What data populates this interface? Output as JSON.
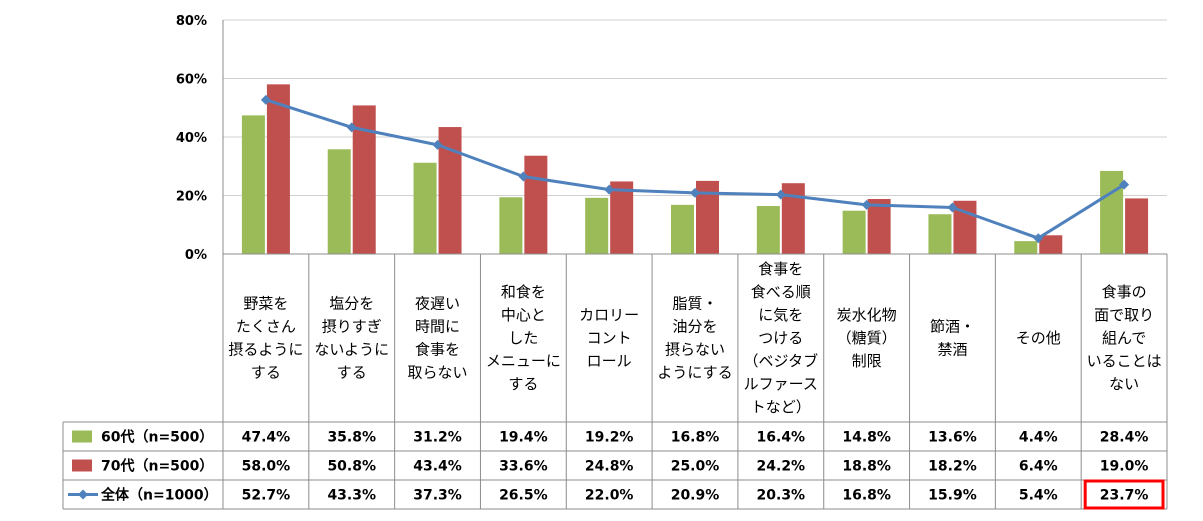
{
  "chart_data": {
    "type": "bar",
    "title": "",
    "xlabel": "",
    "ylabel": "",
    "ylim": [
      0,
      80
    ],
    "yticks": [
      "0%",
      "20%",
      "40%",
      "60%",
      "80%"
    ],
    "yticks_values": [
      0,
      20,
      40,
      60,
      80
    ],
    "grid": true,
    "categories": [
      [
        "野菜を",
        "たくさん",
        "摂るように",
        "する"
      ],
      [
        "塩分を",
        "摂りすぎ",
        "ないように",
        "する"
      ],
      [
        "夜遅い",
        "時間に",
        "食事を",
        "取らない"
      ],
      [
        "和食を",
        "中心と",
        "した",
        "メニューに",
        "する"
      ],
      [
        "カロリー",
        "コント",
        "ロール"
      ],
      [
        "脂質・",
        "油分を",
        "摂らない",
        "ようにする"
      ],
      [
        "食事を",
        "食べる順",
        "に気を",
        "つける",
        "（ベジタブ",
        "ルファース",
        "トなど）"
      ],
      [
        "炭水化物",
        "（糖質）",
        "制限"
      ],
      [
        "節酒・",
        "禁酒"
      ],
      [
        "その他"
      ],
      [
        "食事の",
        "面で取り",
        "組んで",
        "いることは",
        "ない"
      ]
    ],
    "series": [
      {
        "name": "60代（n=500）",
        "kind": "bar",
        "color": "#9BBB59",
        "values": [
          47.4,
          35.8,
          31.2,
          19.4,
          19.2,
          16.8,
          16.4,
          14.8,
          13.6,
          4.4,
          28.4
        ],
        "labels": [
          "47.4%",
          "35.8%",
          "31.2%",
          "19.4%",
          "19.2%",
          "16.8%",
          "16.4%",
          "14.8%",
          "13.6%",
          "4.4%",
          "28.4%"
        ]
      },
      {
        "name": "70代（n=500）",
        "kind": "bar",
        "color": "#C0504D",
        "values": [
          58.0,
          50.8,
          43.4,
          33.6,
          24.8,
          25.0,
          24.2,
          18.8,
          18.2,
          6.4,
          19.0
        ],
        "labels": [
          "58.0%",
          "50.8%",
          "43.4%",
          "33.6%",
          "24.8%",
          "25.0%",
          "24.2%",
          "18.8%",
          "18.2%",
          "6.4%",
          "19.0%"
        ]
      },
      {
        "name": "全体（n=1000）",
        "kind": "line",
        "color": "#4F81BD",
        "values": [
          52.7,
          43.3,
          37.3,
          26.5,
          22.0,
          20.9,
          20.3,
          16.8,
          15.9,
          5.4,
          23.7
        ],
        "labels": [
          "52.7%",
          "43.3%",
          "37.3%",
          "26.5%",
          "22.0%",
          "20.9%",
          "20.3%",
          "16.8%",
          "15.9%",
          "5.4%",
          "23.7%"
        ]
      }
    ],
    "data_table": true,
    "highlight": {
      "series": 2,
      "category": 10,
      "color": "#FF0000"
    }
  }
}
